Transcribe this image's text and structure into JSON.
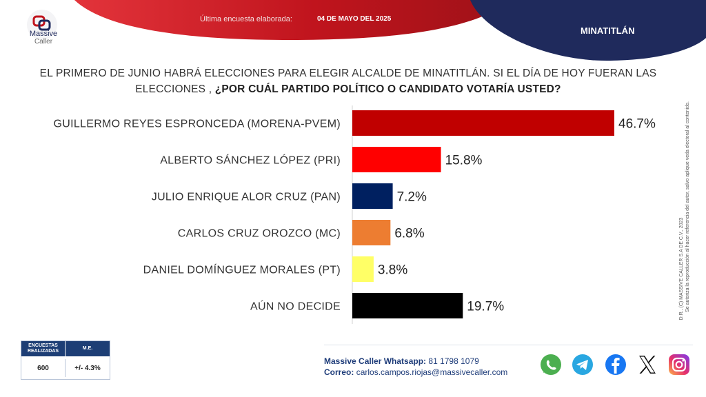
{
  "header": {
    "brand_line1": "Massive",
    "brand_line2": "Caller",
    "last_survey_label": "Última encuesta elaborada:",
    "last_survey_date": "04 DE MAYO DEL 2025",
    "region": "MINATITLÁN",
    "colors": {
      "red": "#c0141d",
      "navy": "#1f2a5c"
    }
  },
  "question": {
    "part1": "EL PRIMERO DE JUNIO HABRÁ ELECCIONES PARA ELEGIR ALCALDE DE MINATITLÁN.  SI EL DÍA DE HOY FUERAN LAS ELECCIONES ,",
    "part2": "¿POR CUÁL PARTIDO POLÍTICO O CANDIDATO VOTARÍA USTED?"
  },
  "chart_data": {
    "type": "bar",
    "orientation": "horizontal",
    "categories": [
      "GUILLERMO REYES ESPRONCEDA (MORENA-PVEM)",
      "ALBERTO SÁNCHEZ LÓPEZ (PRI)",
      "JULIO ENRIQUE ALOR CRUZ (PAN)",
      "CARLOS CRUZ OROZCO (MC)",
      "DANIEL DOMÍNGUEZ MORALES (PT)",
      "AÚN NO DECIDE"
    ],
    "values": [
      46.7,
      15.8,
      7.2,
      6.8,
      3.8,
      19.7
    ],
    "labels": [
      "46.7%",
      "15.8%",
      "7.2%",
      "6.8%",
      "3.8%",
      "19.7%"
    ],
    "colors": [
      "#c00000",
      "#ff0000",
      "#002060",
      "#ed7d31",
      "#ffff66",
      "#000000"
    ],
    "xlim": [
      0,
      50
    ],
    "grid": false,
    "legend": "none"
  },
  "side_note": {
    "line1": "D.R., (C) MASSIVE CALLER S.A DE C.V., 2023",
    "line2": "Se autoriza la reproducción al hacer referencia del autor, salvo aplique veda electoral al contenido."
  },
  "stats": {
    "surveys_label": "ENCUESTAS REALIZADAS",
    "surveys_value": "600",
    "me_label": "M.E.",
    "me_value": "+/- 4.3%"
  },
  "contact": {
    "whatsapp_label": "Massive Caller Whatsapp:",
    "whatsapp_value": "81 1798 1079",
    "email_label": "Correo:",
    "email_value": "carlos.campos.riojas@massivecaller.com"
  },
  "social": [
    "whatsapp-icon",
    "telegram-icon",
    "facebook-icon",
    "x-icon",
    "instagram-icon"
  ]
}
